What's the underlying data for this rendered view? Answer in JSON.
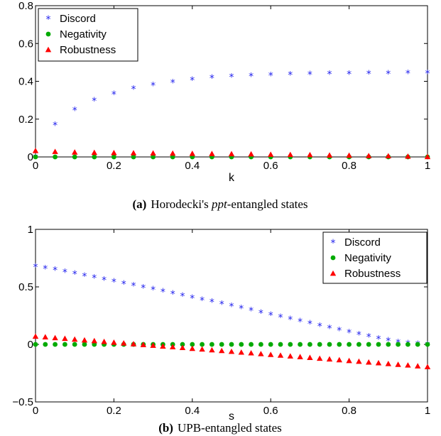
{
  "chart_data": [
    {
      "type": "scatter",
      "caption": {
        "tag": "(a)",
        "pre": "Horodecki's ",
        "italic": "ppt",
        "post": "-entangled states"
      },
      "xlabel": "k",
      "ylabel": "",
      "xlim": [
        0,
        1
      ],
      "ylim": [
        0,
        0.8
      ],
      "xticks": [
        "0",
        "0.2",
        "0.4",
        "0.6",
        "0.8",
        "1"
      ],
      "xtick_values": [
        0,
        0.2,
        0.4,
        0.6,
        0.8,
        1
      ],
      "yticks": [
        "0",
        "0.2",
        "0.4",
        "0.6",
        "0.8"
      ],
      "ytick_values": [
        0,
        0.2,
        0.4,
        0.6,
        0.8
      ],
      "grid": false,
      "legend_position": "top-left",
      "x": [
        0,
        0.05,
        0.1,
        0.15,
        0.2,
        0.25,
        0.3,
        0.35,
        0.4,
        0.45,
        0.5,
        0.55,
        0.6,
        0.65,
        0.7,
        0.75,
        0.8,
        0.85,
        0.9,
        0.95,
        1.0
      ],
      "series": [
        {
          "name": "Discord",
          "marker": "star",
          "color": "#2222ee",
          "values": [
            0.0,
            0.17,
            0.25,
            0.3,
            0.335,
            0.362,
            0.382,
            0.397,
            0.41,
            0.42,
            0.426,
            0.43,
            0.434,
            0.437,
            0.439,
            0.441,
            0.442,
            0.443,
            0.444,
            0.445,
            0.446
          ]
        },
        {
          "name": "Negativity",
          "marker": "circle",
          "color": "#00aa00",
          "values": [
            0,
            0,
            0,
            0,
            0,
            0,
            0,
            0,
            0,
            0,
            0,
            0,
            0,
            0,
            0,
            0,
            0,
            0,
            0,
            0,
            0
          ]
        },
        {
          "name": "Robustness",
          "marker": "triangle",
          "color": "#ff0000",
          "values": [
            0.033,
            0.028,
            0.025,
            0.023,
            0.022,
            0.021,
            0.02,
            0.019,
            0.018,
            0.017,
            0.016,
            0.015,
            0.013,
            0.012,
            0.011,
            0.009,
            0.008,
            0.006,
            0.005,
            0.003,
            0.001
          ]
        }
      ]
    },
    {
      "type": "scatter",
      "caption": {
        "tag": "(b)",
        "pre": "UPB-entangled states",
        "italic": "",
        "post": ""
      },
      "xlabel": "s",
      "ylabel": "",
      "xlim": [
        0,
        1
      ],
      "ylim": [
        -0.5,
        1
      ],
      "xticks": [
        "0",
        "0.2",
        "0.4",
        "0.6",
        "0.8",
        "1"
      ],
      "xtick_values": [
        0,
        0.2,
        0.4,
        0.6,
        0.8,
        1
      ],
      "yticks": [
        "−0.5",
        "0",
        "0.5",
        "1"
      ],
      "ytick_values": [
        -0.5,
        0,
        0.5,
        1
      ],
      "grid": false,
      "legend_position": "top-right",
      "x": [
        0,
        0.025,
        0.05,
        0.075,
        0.1,
        0.125,
        0.15,
        0.175,
        0.2,
        0.225,
        0.25,
        0.275,
        0.3,
        0.325,
        0.35,
        0.375,
        0.4,
        0.425,
        0.45,
        0.475,
        0.5,
        0.525,
        0.55,
        0.575,
        0.6,
        0.625,
        0.65,
        0.675,
        0.7,
        0.725,
        0.75,
        0.775,
        0.8,
        0.825,
        0.85,
        0.875,
        0.9,
        0.925,
        0.95,
        0.975,
        1.0
      ],
      "series": [
        {
          "name": "Discord",
          "marker": "star",
          "color": "#2222ee",
          "values": [
            0.68,
            0.665,
            0.65,
            0.634,
            0.617,
            0.6,
            0.583,
            0.566,
            0.549,
            0.532,
            0.515,
            0.497,
            0.48,
            0.462,
            0.444,
            0.426,
            0.408,
            0.39,
            0.372,
            0.354,
            0.335,
            0.317,
            0.298,
            0.279,
            0.26,
            0.241,
            0.222,
            0.203,
            0.184,
            0.165,
            0.146,
            0.127,
            0.108,
            0.089,
            0.07,
            0.052,
            0.036,
            0.022,
            0.012,
            0.005,
            0.0
          ]
        },
        {
          "name": "Negativity",
          "marker": "circle",
          "color": "#00aa00",
          "values": [
            0,
            0,
            0,
            0,
            0,
            0,
            0,
            0,
            0,
            0,
            0,
            0,
            0,
            0,
            0,
            0,
            0,
            0,
            0,
            0,
            0,
            0,
            0,
            0,
            0,
            0,
            0,
            0,
            0,
            0,
            0,
            0,
            0,
            0,
            0,
            0,
            0,
            0,
            0,
            0,
            0
          ]
        },
        {
          "name": "Robustness",
          "marker": "triangle",
          "color": "#ff0000",
          "values": [
            0.07,
            0.064,
            0.057,
            0.051,
            0.044,
            0.037,
            0.031,
            0.024,
            0.017,
            0.011,
            0.004,
            -0.003,
            -0.009,
            -0.016,
            -0.022,
            -0.029,
            -0.036,
            -0.042,
            -0.049,
            -0.055,
            -0.062,
            -0.069,
            -0.075,
            -0.082,
            -0.089,
            -0.095,
            -0.102,
            -0.108,
            -0.115,
            -0.122,
            -0.128,
            -0.135,
            -0.142,
            -0.148,
            -0.155,
            -0.161,
            -0.168,
            -0.175,
            -0.181,
            -0.188,
            -0.195
          ]
        }
      ]
    }
  ]
}
